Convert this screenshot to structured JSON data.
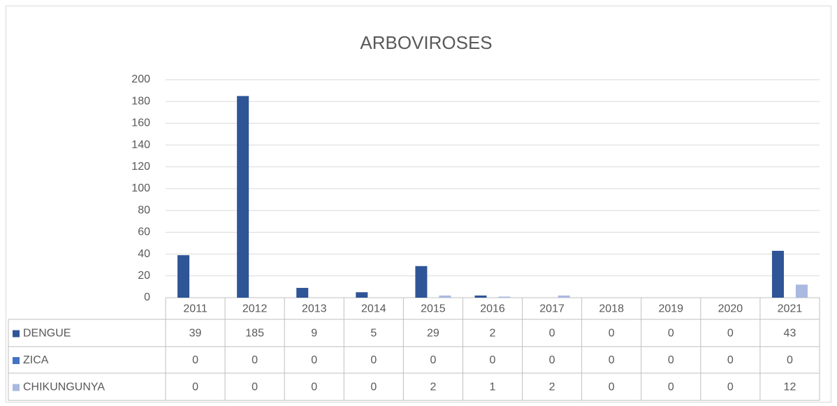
{
  "chart_data": {
    "type": "bar",
    "title": "ARBOVIROSES",
    "categories": [
      "2011",
      "2012",
      "2013",
      "2014",
      "2015",
      "2016",
      "2017",
      "2018",
      "2019",
      "2020",
      "2021"
    ],
    "series": [
      {
        "name": "DENGUE",
        "color": "#2f5597",
        "values": [
          39,
          185,
          9,
          5,
          29,
          2,
          0,
          0,
          0,
          0,
          43
        ]
      },
      {
        "name": "ZICA",
        "color": "#4472c4",
        "values": [
          0,
          0,
          0,
          0,
          0,
          0,
          0,
          0,
          0,
          0,
          0
        ]
      },
      {
        "name": "CHIKUNGUNYA",
        "color": "#a9b9e0",
        "values": [
          0,
          0,
          0,
          0,
          2,
          1,
          2,
          0,
          0,
          0,
          12
        ]
      }
    ],
    "ylim": [
      0,
      200
    ],
    "yticks": [
      0,
      20,
      40,
      60,
      80,
      100,
      120,
      140,
      160,
      180,
      200
    ],
    "grid": true
  }
}
